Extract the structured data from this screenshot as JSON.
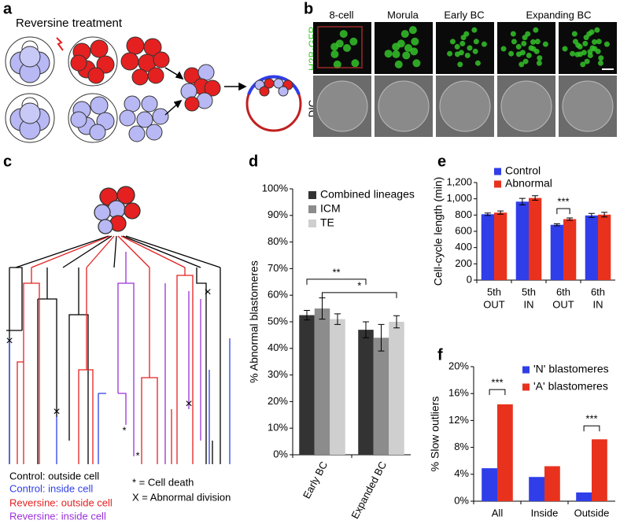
{
  "panel_labels": [
    "a",
    "b",
    "c",
    "d",
    "e",
    "f"
  ],
  "panel_a": {
    "title": "Reversine treatment"
  },
  "panel_b": {
    "columns": [
      "8-cell",
      "Morula",
      "Early BC",
      "Expanding BC"
    ],
    "rows": [
      "H2B-GFP",
      "DIC"
    ]
  },
  "panel_c": {
    "legend": [
      "Control: outside cell",
      "Control: inside cell",
      "Reversine: outside cell",
      "Reversine: inside cell"
    ],
    "notes": [
      "* = Cell death",
      "X = Abnormal division"
    ]
  },
  "chart_data": [
    {
      "type": "bar",
      "ylabel": "% Abnormal blastomeres",
      "categories": [
        "Early BC",
        "Expanded BC"
      ],
      "series": [
        {
          "name": "Combined lineages",
          "color": "#333333",
          "values": [
            52.5,
            47
          ],
          "errors": [
            1.8,
            3
          ]
        },
        {
          "name": "ICM",
          "color": "#8c8c8c",
          "values": [
            55,
            44
          ],
          "errors": [
            4,
            5
          ]
        },
        {
          "name": "TE",
          "color": "#cfcfcf",
          "values": [
            51,
            50
          ],
          "errors": [
            2,
            2.3
          ]
        }
      ],
      "ylim": [
        0,
        100
      ],
      "yticks": [
        {
          "value": 0,
          "label": "0%"
        },
        {
          "value": 10,
          "label": "10%"
        },
        {
          "value": 20,
          "label": "20%"
        },
        {
          "value": 30,
          "label": "30%"
        },
        {
          "value": 40,
          "label": "40%"
        },
        {
          "value": 50,
          "label": "50%"
        },
        {
          "value": 60,
          "label": "60%"
        },
        {
          "value": 70,
          "label": "70%"
        },
        {
          "value": 80,
          "label": "80%"
        },
        {
          "value": 90,
          "label": "90%"
        },
        {
          "value": 100,
          "label": "100%"
        }
      ],
      "annotations": [
        "**",
        "*"
      ]
    },
    {
      "type": "bar",
      "ylabel": "Cell-cycle length (min)",
      "categories": [
        [
          "5th",
          "OUT"
        ],
        [
          "5th",
          "IN"
        ],
        [
          "6th",
          "OUT"
        ],
        [
          "6th",
          "IN"
        ]
      ],
      "series": [
        {
          "name": "Control",
          "color": "#2f3ee8",
          "values": [
            810,
            965,
            680,
            795
          ],
          "errors": [
            15,
            40,
            12,
            25
          ]
        },
        {
          "name": "Abnormal",
          "color": "#e8321e",
          "values": [
            830,
            1010,
            750,
            805
          ],
          "errors": [
            20,
            28,
            15,
            28
          ]
        }
      ],
      "ylim": [
        0,
        1200
      ],
      "yticks": [
        0,
        200,
        400,
        600,
        800,
        {
          "value": 1000,
          "label": "1,000"
        },
        {
          "value": 1200,
          "label": "1,200"
        }
      ],
      "annotations": [
        "***"
      ]
    },
    {
      "type": "bar",
      "ylabel": "% Slow outliers",
      "categories": [
        "All",
        "Inside",
        "Outside"
      ],
      "series": [
        {
          "name": "'N' blastomeres",
          "color": "#2f3ee8",
          "values": [
            4.9,
            3.6,
            1.3
          ]
        },
        {
          "name": "'A' blastomeres",
          "color": "#e8321e",
          "values": [
            14.4,
            5.2,
            9.2
          ]
        }
      ],
      "ylim": [
        0,
        20
      ],
      "yticks": [
        {
          "value": 0,
          "label": "0%"
        },
        {
          "value": 4,
          "label": "4%"
        },
        {
          "value": 8,
          "label": "8%"
        },
        {
          "value": 12,
          "label": "12%"
        },
        {
          "value": 16,
          "label": "16%"
        },
        {
          "value": 20,
          "label": "20%"
        }
      ],
      "annotations": [
        "***",
        "***"
      ]
    }
  ]
}
